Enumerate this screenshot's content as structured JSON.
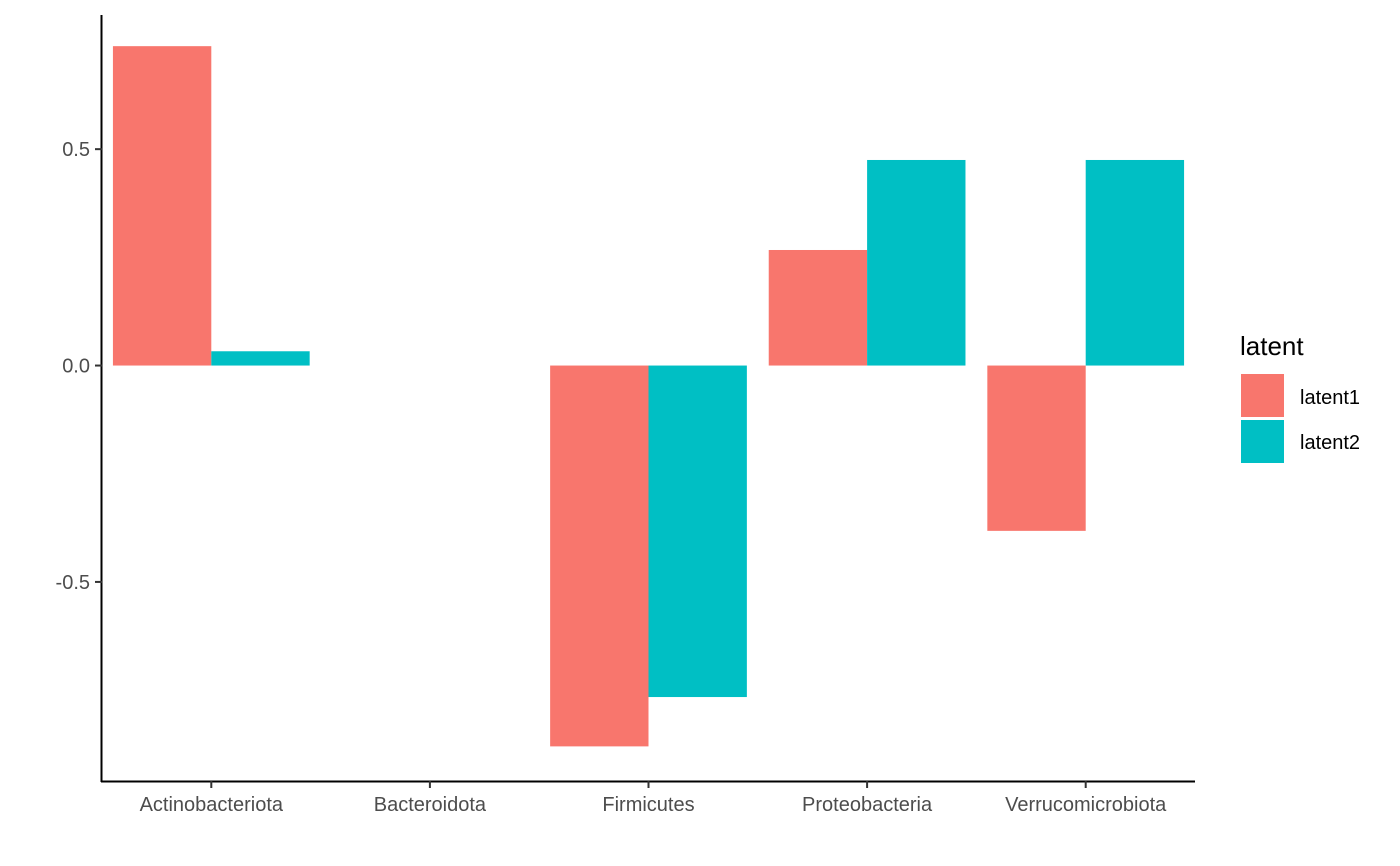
{
  "chart_data": {
    "type": "bar",
    "categories": [
      "Actinobacteriota",
      "Bacteroidota",
      "Firmicutes",
      "Proteobacteria",
      "Verrucomicrobiota"
    ],
    "series": [
      {
        "name": "latent1",
        "color": "#F8766D",
        "values": [
          0.738,
          null,
          -0.88,
          0.267,
          -0.382
        ]
      },
      {
        "name": "latent2",
        "color": "#00BFC4",
        "values": [
          0.033,
          null,
          -0.766,
          0.475,
          null
        ]
      }
    ],
    "special_values": {
      "Verrucomicrobiota": {
        "latent2": 0.475
      }
    },
    "title": "",
    "xlabel": "",
    "ylabel": "",
    "ylim": [
      -0.96,
      0.81
    ],
    "yticks": [
      -0.5,
      0.0,
      0.5
    ],
    "ytick_labels": [
      "-0.5",
      "0.0",
      "0.5"
    ],
    "legend": {
      "title": "latent",
      "placement": "right"
    },
    "grid": false
  }
}
